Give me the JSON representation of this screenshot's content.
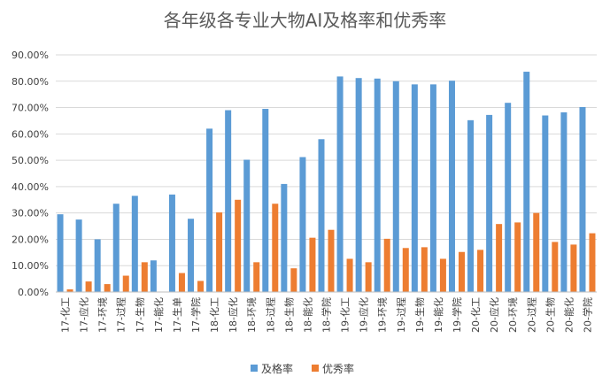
{
  "chart_data": {
    "type": "bar",
    "title": "各年级各专业大物AI及格率和优秀率",
    "xlabel": "",
    "ylabel": "",
    "ylim": [
      0,
      90
    ],
    "y_ticks": [
      "0.00%",
      "10.00%",
      "20.00%",
      "30.00%",
      "40.00%",
      "50.00%",
      "60.00%",
      "70.00%",
      "80.00%",
      "90.00%"
    ],
    "grid": true,
    "legend_position": "bottom",
    "categories": [
      "17-化工",
      "17-应化",
      "17-环境",
      "17-过程",
      "17-生物",
      "17-能化",
      "17-生单",
      "17-学院",
      "18-化工",
      "18-应化",
      "18-环境",
      "18-过程",
      "18-生物",
      "18-能化",
      "18-学院",
      "19-化工",
      "19-应化",
      "19-环境",
      "19-过程",
      "19-生物",
      "19-能化",
      "19-学院",
      "20-化工",
      "20-应化",
      "20-环境",
      "20-过程",
      "20-生物",
      "20-能化",
      "20-学院"
    ],
    "series": [
      {
        "name": "及格率",
        "color": "#5B9BD5",
        "values": [
          29.5,
          27.5,
          20,
          33.5,
          36.5,
          12,
          37,
          27.8,
          62,
          69,
          50.2,
          69.5,
          41,
          51.2,
          58,
          81.8,
          81.2,
          81,
          80,
          78.8,
          78.8,
          80.2,
          65.2,
          67.2,
          71.8,
          83.6,
          67,
          68.2,
          70.2
        ]
      },
      {
        "name": "优秀率",
        "color": "#ED7D31",
        "values": [
          1,
          4,
          3,
          6.2,
          11.3,
          0,
          7.2,
          4.2,
          30.2,
          35,
          11.3,
          33.5,
          9,
          20.6,
          23.6,
          12.6,
          11.3,
          20.2,
          16.7,
          17,
          12.6,
          15.2,
          16,
          25.8,
          26.4,
          30,
          19,
          18,
          22.3
        ]
      }
    ]
  }
}
